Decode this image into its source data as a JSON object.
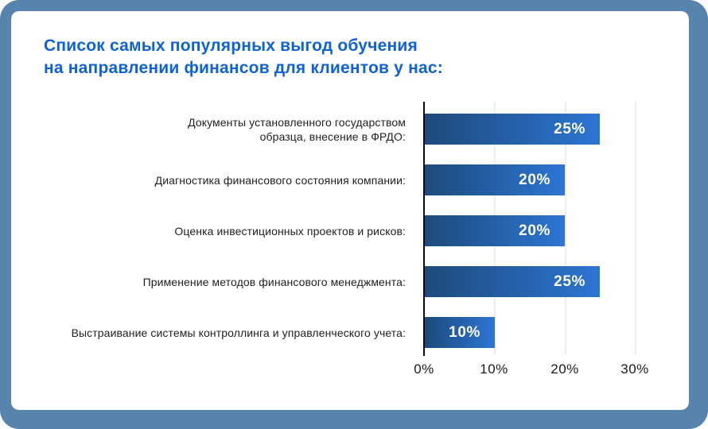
{
  "colors": {
    "frame_bg": "#5684ac",
    "card_bg": "#ffffff",
    "title_color": "#0e62d8",
    "bar_grad_start": "#1e4a7b",
    "bar_grad_end": "#2c76d4",
    "grid_color": "#ececec",
    "axis_color": "#0c0c0c",
    "label_color": "#222222",
    "tick_color": "#1b1b1b",
    "value_color": "#ffffff"
  },
  "title": {
    "text": "Список самых популярных выгод обучения\nна направлении финансов для клиентов у нас:"
  },
  "chart_data": {
    "type": "bar",
    "orientation": "horizontal",
    "title": "Список самых популярных выгод обучения на направлении финансов для клиентов у нас:",
    "categories": [
      "Документы установленного государством\nобразца, внесение в ФРДО:",
      "Диагностика финансового состояния компании:",
      "Оценка инвестиционных проектов и рисков:",
      "Применение методов финансового менеджмента:",
      "Выстраивание системы контроллинга и управленческого учета:"
    ],
    "values": [
      25,
      20,
      20,
      25,
      10
    ],
    "value_labels": [
      "25%",
      "20%",
      "20%",
      "25%",
      "10%"
    ],
    "xticks": [
      "0%",
      "10%",
      "20%",
      "30%"
    ],
    "xlabel": "",
    "ylabel": "",
    "xlim": [
      0,
      30
    ],
    "grid": true,
    "legend": false,
    "bar_style": "gradient dark-navy to bright-blue, value labels inside bar right-aligned in white"
  }
}
